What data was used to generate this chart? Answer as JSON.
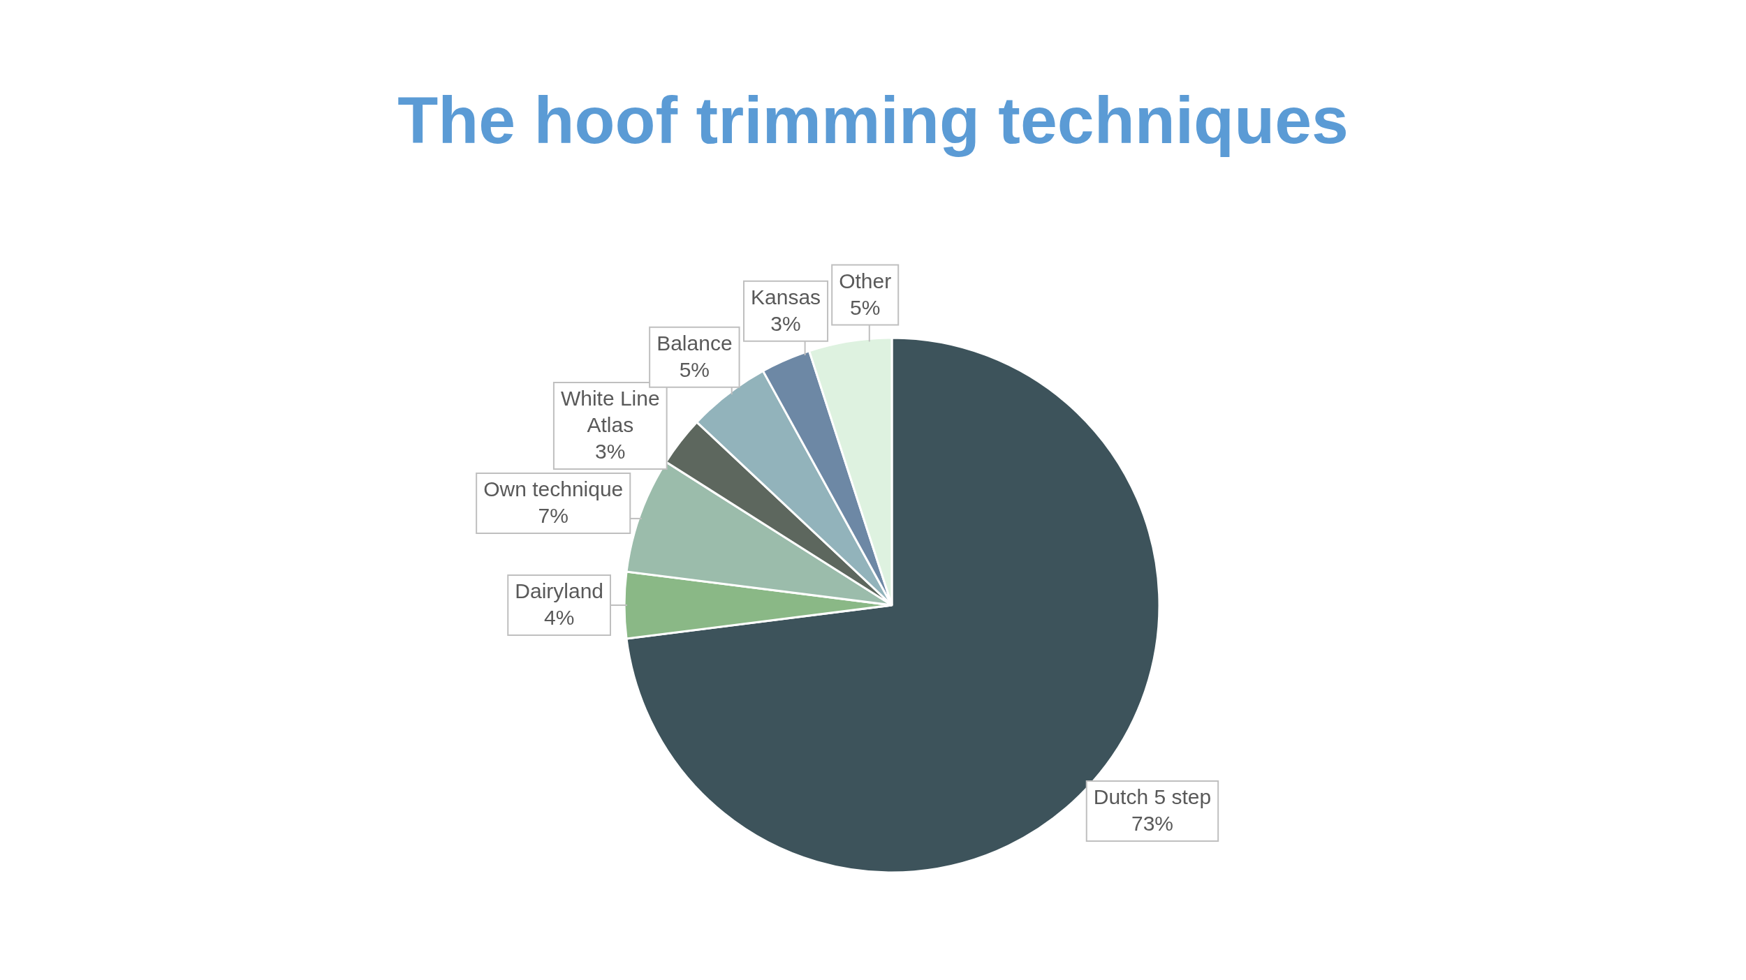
{
  "chart_data": {
    "type": "pie",
    "title": "The hoof trimming techniques",
    "categories": [
      "Dutch 5 step",
      "Dairyland",
      "Own technique",
      "White Line Atlas",
      "Balance",
      "Kansas",
      "Other"
    ],
    "values": [
      73,
      4,
      7,
      3,
      5,
      3,
      5
    ],
    "colors": [
      "#3d535b",
      "#8ab886",
      "#9bbcab",
      "#5d675e",
      "#92b3bb",
      "#6d88a5",
      "#def2e0"
    ],
    "value_labels": [
      "73%",
      "4%",
      "7%",
      "3%",
      "5%",
      "3%",
      "5%"
    ]
  }
}
